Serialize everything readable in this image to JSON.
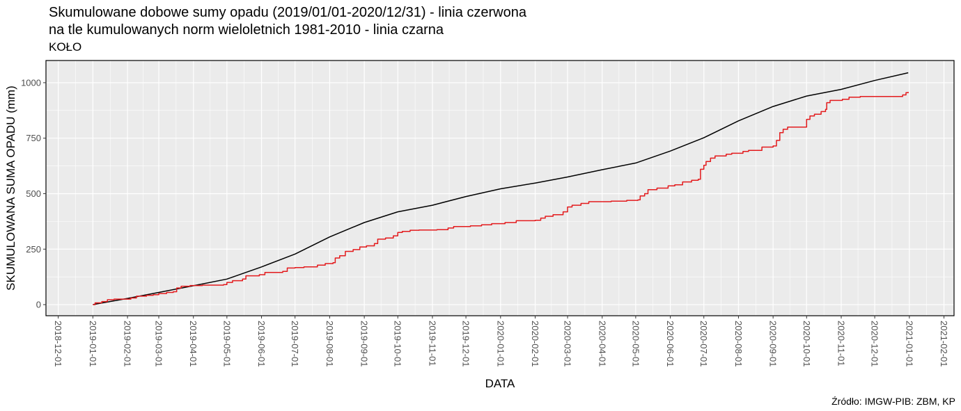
{
  "title_line1": "Skumulowane dobowe sumy opadu (2019/01/01-2020/12/31) - linia czerwona",
  "title_line2": "na tle kumulowanych norm wieloletnich 1981-2010 - linia czarna",
  "subtitle": "KOŁO",
  "source": "Źródło: IMGW-PIB: ZBM, KP",
  "chart_data": {
    "type": "line",
    "xlabel": "DATA",
    "ylabel": "SKUMULOWANA SUMA OPADU (mm)",
    "xlim": [
      "2018-11-20",
      "2021-02-10"
    ],
    "ylim": [
      -50,
      1100
    ],
    "yticks": [
      0,
      250,
      500,
      750,
      1000
    ],
    "xticks": [
      "2018-12-01",
      "2019-01-01",
      "2019-02-01",
      "2019-03-01",
      "2019-04-01",
      "2019-05-01",
      "2019-06-01",
      "2019-07-01",
      "2019-08-01",
      "2019-09-01",
      "2019-10-01",
      "2019-11-01",
      "2019-12-01",
      "2020-01-01",
      "2020-02-01",
      "2020-03-01",
      "2020-04-01",
      "2020-05-01",
      "2020-06-01",
      "2020-07-01",
      "2020-08-01",
      "2020-09-01",
      "2020-10-01",
      "2020-11-01",
      "2020-12-01",
      "2021-01-01",
      "2021-02-01"
    ],
    "grid": true,
    "colors": {
      "panel": "#ebebeb",
      "grid": "#ffffff",
      "observed": "#e31a1c",
      "normal": "#000000"
    },
    "series": [
      {
        "key": "normal",
        "color": "#000000",
        "step": false,
        "points": [
          [
            "2019-01-01",
            0
          ],
          [
            "2019-02-01",
            28
          ],
          [
            "2019-03-01",
            55
          ],
          [
            "2019-04-01",
            85
          ],
          [
            "2019-05-01",
            115
          ],
          [
            "2019-06-01",
            170
          ],
          [
            "2019-07-01",
            228
          ],
          [
            "2019-08-01",
            305
          ],
          [
            "2019-09-01",
            370
          ],
          [
            "2019-10-01",
            418
          ],
          [
            "2019-11-01",
            448
          ],
          [
            "2019-12-01",
            487
          ],
          [
            "2020-01-01",
            522
          ],
          [
            "2020-02-01",
            548
          ],
          [
            "2020-03-01",
            575
          ],
          [
            "2020-04-01",
            608
          ],
          [
            "2020-05-01",
            638
          ],
          [
            "2020-06-01",
            692
          ],
          [
            "2020-07-01",
            752
          ],
          [
            "2020-08-01",
            828
          ],
          [
            "2020-09-01",
            893
          ],
          [
            "2020-10-01",
            940
          ],
          [
            "2020-11-01",
            970
          ],
          [
            "2020-12-01",
            1010
          ],
          [
            "2020-12-31",
            1045
          ]
        ]
      },
      {
        "key": "observed",
        "color": "#e31a1c",
        "step": true,
        "points": [
          [
            "2019-01-01",
            0
          ],
          [
            "2019-01-03",
            8
          ],
          [
            "2019-01-09",
            14
          ],
          [
            "2019-01-14",
            22
          ],
          [
            "2019-01-20",
            25
          ],
          [
            "2019-02-04",
            30
          ],
          [
            "2019-02-09",
            38
          ],
          [
            "2019-02-18",
            42
          ],
          [
            "2019-02-24",
            45
          ],
          [
            "2019-03-01",
            50
          ],
          [
            "2019-03-08",
            55
          ],
          [
            "2019-03-14",
            58
          ],
          [
            "2019-03-17",
            75
          ],
          [
            "2019-03-21",
            83
          ],
          [
            "2019-03-29",
            86
          ],
          [
            "2019-04-09",
            88
          ],
          [
            "2019-04-28",
            90
          ],
          [
            "2019-05-01",
            100
          ],
          [
            "2019-05-06",
            108
          ],
          [
            "2019-05-15",
            115
          ],
          [
            "2019-05-18",
            130
          ],
          [
            "2019-05-30",
            135
          ],
          [
            "2019-06-04",
            145
          ],
          [
            "2019-06-20",
            150
          ],
          [
            "2019-06-24",
            165
          ],
          [
            "2019-07-01",
            167
          ],
          [
            "2019-07-09",
            170
          ],
          [
            "2019-07-21",
            178
          ],
          [
            "2019-07-28",
            185
          ],
          [
            "2019-08-04",
            189
          ],
          [
            "2019-08-06",
            210
          ],
          [
            "2019-08-10",
            220
          ],
          [
            "2019-08-15",
            240
          ],
          [
            "2019-08-22",
            248
          ],
          [
            "2019-08-28",
            260
          ],
          [
            "2019-09-03",
            265
          ],
          [
            "2019-09-10",
            275
          ],
          [
            "2019-09-13",
            295
          ],
          [
            "2019-09-20",
            300
          ],
          [
            "2019-09-27",
            310
          ],
          [
            "2019-10-01",
            325
          ],
          [
            "2019-10-05",
            330
          ],
          [
            "2019-10-12",
            335
          ],
          [
            "2019-10-20",
            336
          ],
          [
            "2019-11-05",
            338
          ],
          [
            "2019-11-15",
            345
          ],
          [
            "2019-11-20",
            352
          ],
          [
            "2019-12-05",
            355
          ],
          [
            "2019-12-15",
            360
          ],
          [
            "2019-12-24",
            365
          ],
          [
            "2020-01-05",
            370
          ],
          [
            "2020-01-15",
            378
          ],
          [
            "2020-02-01",
            380
          ],
          [
            "2020-02-06",
            390
          ],
          [
            "2020-02-10",
            398
          ],
          [
            "2020-02-17",
            405
          ],
          [
            "2020-02-26",
            418
          ],
          [
            "2020-03-01",
            440
          ],
          [
            "2020-03-05",
            448
          ],
          [
            "2020-03-13",
            456
          ],
          [
            "2020-03-20",
            464
          ],
          [
            "2020-04-09",
            466
          ],
          [
            "2020-04-23",
            470
          ],
          [
            "2020-05-03",
            472
          ],
          [
            "2020-05-05",
            490
          ],
          [
            "2020-05-09",
            500
          ],
          [
            "2020-05-12",
            518
          ],
          [
            "2020-05-20",
            525
          ],
          [
            "2020-05-30",
            535
          ],
          [
            "2020-06-05",
            540
          ],
          [
            "2020-06-12",
            553
          ],
          [
            "2020-06-20",
            560
          ],
          [
            "2020-06-26",
            565
          ],
          [
            "2020-06-28",
            610
          ],
          [
            "2020-07-01",
            628
          ],
          [
            "2020-07-03",
            645
          ],
          [
            "2020-07-07",
            660
          ],
          [
            "2020-07-11",
            670
          ],
          [
            "2020-07-21",
            678
          ],
          [
            "2020-07-26",
            682
          ],
          [
            "2020-08-05",
            690
          ],
          [
            "2020-08-10",
            695
          ],
          [
            "2020-08-22",
            710
          ],
          [
            "2020-09-01",
            715
          ],
          [
            "2020-09-04",
            740
          ],
          [
            "2020-09-07",
            775
          ],
          [
            "2020-09-10",
            790
          ],
          [
            "2020-09-14",
            800
          ],
          [
            "2020-10-01",
            835
          ],
          [
            "2020-10-04",
            850
          ],
          [
            "2020-10-08",
            858
          ],
          [
            "2020-10-14",
            870
          ],
          [
            "2020-10-18",
            880
          ],
          [
            "2020-10-19",
            910
          ],
          [
            "2020-10-22",
            920
          ],
          [
            "2020-11-02",
            925
          ],
          [
            "2020-11-08",
            935
          ],
          [
            "2020-11-18",
            938
          ],
          [
            "2020-12-26",
            945
          ],
          [
            "2020-12-29",
            955
          ],
          [
            "2020-12-31",
            958
          ]
        ]
      }
    ]
  }
}
